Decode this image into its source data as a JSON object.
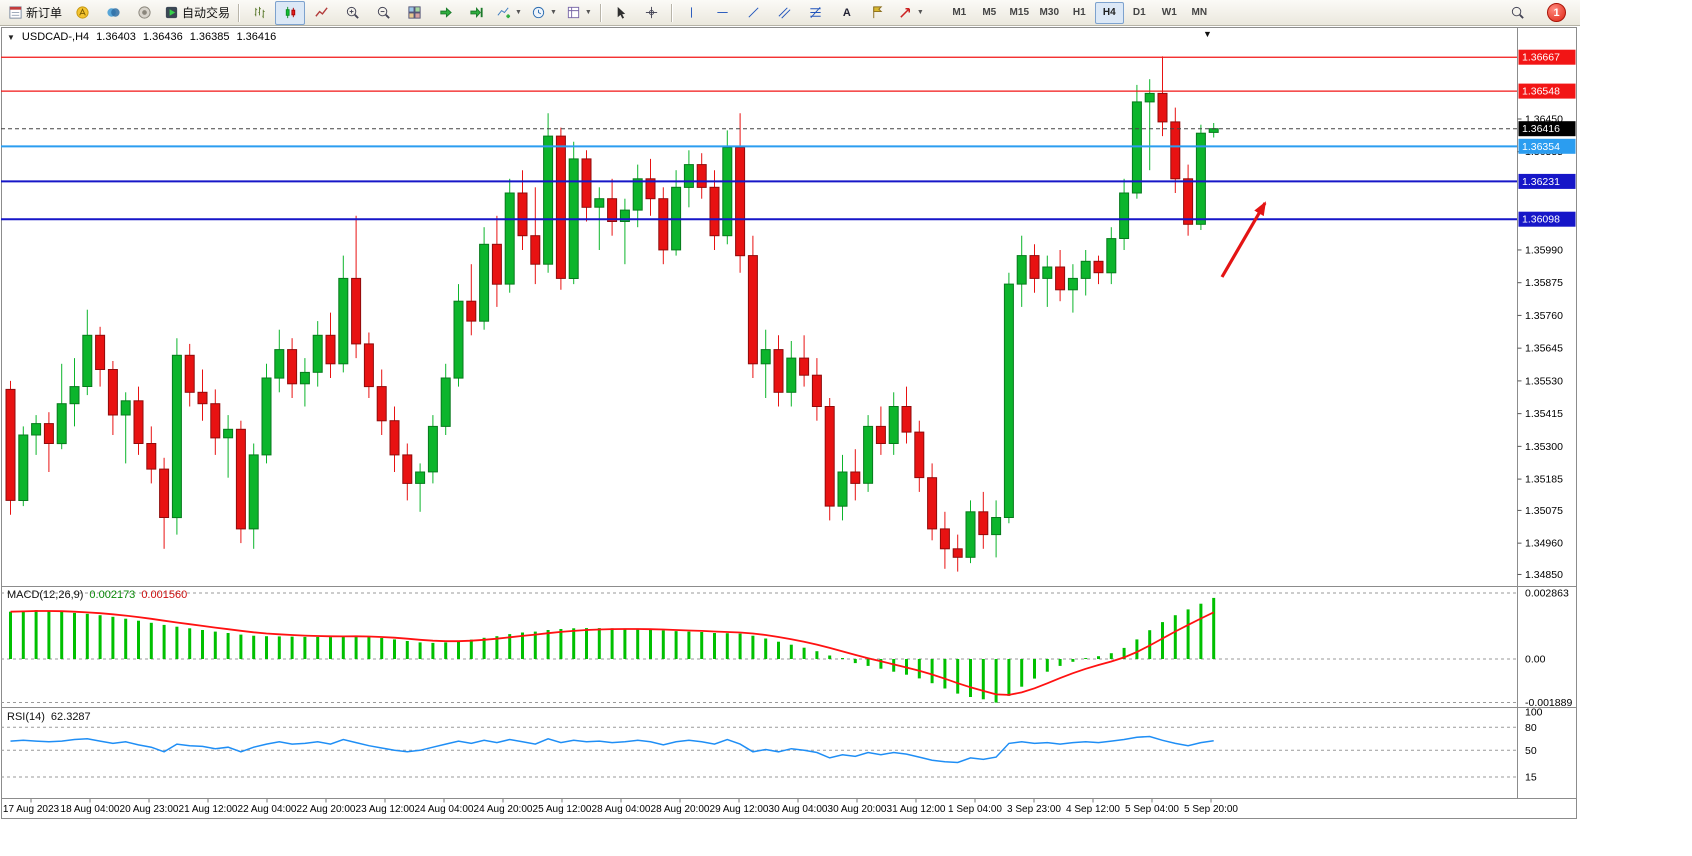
{
  "toolbar": {
    "new_order": "新订单",
    "autotrading": "自动交易",
    "timeframes": [
      "M1",
      "M5",
      "M15",
      "M30",
      "H1",
      "H4",
      "D1",
      "W1",
      "MN"
    ],
    "active_timeframe": "H4",
    "notification_count": "1"
  },
  "chart": {
    "symbol_period": "USDCAD-,H4",
    "open": "1.36403",
    "high": "1.36436",
    "low": "1.36385",
    "close": "1.36416",
    "current_price": "1.36416",
    "hlines": [
      {
        "price": 1.36667,
        "color": "#f21515",
        "width": 1.2
      },
      {
        "price": 1.36548,
        "color": "#f21515",
        "width": 1.2
      },
      {
        "price": 1.36354,
        "color": "#2b9df0",
        "width": 2
      },
      {
        "price": 1.36231,
        "color": "#1616c8",
        "width": 2
      },
      {
        "price": 1.36098,
        "color": "#1616c8",
        "width": 2
      }
    ],
    "price_ticks": [
      "1.36450",
      "1.36335",
      "1.35990",
      "1.35875",
      "1.35760",
      "1.35645",
      "1.35530",
      "1.35415",
      "1.35300",
      "1.35185",
      "1.35075",
      "1.34960",
      "1.34850"
    ]
  },
  "chart_data": {
    "type": "candlestick",
    "symbol": "USDCAD",
    "timeframe": "H4",
    "style": {
      "up": "#0cb52c",
      "up_border": "#067a1c",
      "down": "#e81212",
      "down_border": "#8f0b0b"
    },
    "candles": [
      [
        1.355,
        1.3553,
        1.3506,
        1.3511
      ],
      [
        1.3511,
        1.3537,
        1.3509,
        1.3534
      ],
      [
        1.3534,
        1.3541,
        1.3527,
        1.3538
      ],
      [
        1.3538,
        1.3542,
        1.3521,
        1.3531
      ],
      [
        1.3531,
        1.3559,
        1.3529,
        1.3545
      ],
      [
        1.3545,
        1.3561,
        1.3537,
        1.3551
      ],
      [
        1.3551,
        1.3578,
        1.3548,
        1.3569
      ],
      [
        1.3569,
        1.3572,
        1.3551,
        1.3557
      ],
      [
        1.3557,
        1.356,
        1.3534,
        1.3541
      ],
      [
        1.3541,
        1.3549,
        1.3524,
        1.3546
      ],
      [
        1.3546,
        1.3551,
        1.3527,
        1.3531
      ],
      [
        1.3531,
        1.3537,
        1.3517,
        1.3522
      ],
      [
        1.3522,
        1.3526,
        1.3494,
        1.3505
      ],
      [
        1.3505,
        1.3568,
        1.3499,
        1.3562
      ],
      [
        1.3562,
        1.3566,
        1.3544,
        1.3549
      ],
      [
        1.3549,
        1.3557,
        1.3539,
        1.3545
      ],
      [
        1.3545,
        1.355,
        1.3527,
        1.3533
      ],
      [
        1.3533,
        1.3541,
        1.3519,
        1.3536
      ],
      [
        1.3536,
        1.3539,
        1.3496,
        1.3501
      ],
      [
        1.3501,
        1.3531,
        1.3494,
        1.3527
      ],
      [
        1.3527,
        1.3559,
        1.3524,
        1.3554
      ],
      [
        1.3554,
        1.3571,
        1.3549,
        1.3564
      ],
      [
        1.3564,
        1.3568,
        1.3547,
        1.3552
      ],
      [
        1.3552,
        1.3561,
        1.3544,
        1.3556
      ],
      [
        1.3556,
        1.3574,
        1.3551,
        1.3569
      ],
      [
        1.3569,
        1.3577,
        1.3554,
        1.3559
      ],
      [
        1.3559,
        1.3597,
        1.3556,
        1.3589
      ],
      [
        1.3589,
        1.3611,
        1.3561,
        1.3566
      ],
      [
        1.3566,
        1.357,
        1.3547,
        1.3551
      ],
      [
        1.3551,
        1.3557,
        1.3534,
        1.3539
      ],
      [
        1.3539,
        1.3544,
        1.3521,
        1.3527
      ],
      [
        1.3527,
        1.3531,
        1.3511,
        1.3517
      ],
      [
        1.3517,
        1.3524,
        1.3507,
        1.3521
      ],
      [
        1.3521,
        1.3541,
        1.3517,
        1.3537
      ],
      [
        1.3537,
        1.3559,
        1.3534,
        1.3554
      ],
      [
        1.3554,
        1.3587,
        1.3551,
        1.3581
      ],
      [
        1.3581,
        1.3594,
        1.3569,
        1.3574
      ],
      [
        1.3574,
        1.3607,
        1.3571,
        1.3601
      ],
      [
        1.3601,
        1.3611,
        1.3579,
        1.3587
      ],
      [
        1.3587,
        1.3624,
        1.3584,
        1.3619
      ],
      [
        1.3619,
        1.3627,
        1.3599,
        1.3604
      ],
      [
        1.3604,
        1.3621,
        1.3587,
        1.3594
      ],
      [
        1.3594,
        1.3647,
        1.3591,
        1.3639
      ],
      [
        1.3639,
        1.3642,
        1.3585,
        1.3589
      ],
      [
        1.3589,
        1.3637,
        1.3587,
        1.3631
      ],
      [
        1.3631,
        1.3634,
        1.3609,
        1.3614
      ],
      [
        1.3614,
        1.3621,
        1.3599,
        1.3617
      ],
      [
        1.3617,
        1.3624,
        1.3604,
        1.3609
      ],
      [
        1.3609,
        1.3617,
        1.3594,
        1.3613
      ],
      [
        1.3613,
        1.3629,
        1.3607,
        1.3624
      ],
      [
        1.3624,
        1.3631,
        1.3611,
        1.3617
      ],
      [
        1.3617,
        1.3621,
        1.3594,
        1.3599
      ],
      [
        1.3599,
        1.3627,
        1.3597,
        1.3621
      ],
      [
        1.3621,
        1.3634,
        1.3614,
        1.3629
      ],
      [
        1.3629,
        1.3633,
        1.3617,
        1.3621
      ],
      [
        1.3621,
        1.3627,
        1.3599,
        1.3604
      ],
      [
        1.3604,
        1.3641,
        1.3601,
        1.3635
      ],
      [
        1.3635,
        1.3647,
        1.3591,
        1.3597
      ],
      [
        1.3597,
        1.3604,
        1.3554,
        1.3559
      ],
      [
        1.3559,
        1.3571,
        1.3547,
        1.3564
      ],
      [
        1.3564,
        1.3569,
        1.3544,
        1.3549
      ],
      [
        1.3549,
        1.3567,
        1.3544,
        1.3561
      ],
      [
        1.3561,
        1.3569,
        1.3551,
        1.3555
      ],
      [
        1.3555,
        1.3561,
        1.3539,
        1.3544
      ],
      [
        1.3544,
        1.3547,
        1.3504,
        1.3509
      ],
      [
        1.3509,
        1.3527,
        1.3504,
        1.3521
      ],
      [
        1.3521,
        1.3529,
        1.3511,
        1.3517
      ],
      [
        1.3517,
        1.3541,
        1.3514,
        1.3537
      ],
      [
        1.3537,
        1.3544,
        1.3527,
        1.3531
      ],
      [
        1.3531,
        1.3549,
        1.3527,
        1.3544
      ],
      [
        1.3544,
        1.3551,
        1.3531,
        1.3535
      ],
      [
        1.3535,
        1.3539,
        1.3514,
        1.3519
      ],
      [
        1.3519,
        1.3524,
        1.3497,
        1.3501
      ],
      [
        1.3501,
        1.3507,
        1.3487,
        1.3494
      ],
      [
        1.3494,
        1.3499,
        1.3486,
        1.3491
      ],
      [
        1.3491,
        1.3511,
        1.3489,
        1.3507
      ],
      [
        1.3507,
        1.3514,
        1.3494,
        1.3499
      ],
      [
        1.3499,
        1.3511,
        1.3491,
        1.3505
      ],
      [
        1.3505,
        1.3591,
        1.3503,
        1.3587
      ],
      [
        1.3587,
        1.3604,
        1.3579,
        1.3597
      ],
      [
        1.3597,
        1.3601,
        1.3584,
        1.3589
      ],
      [
        1.3589,
        1.3597,
        1.3579,
        1.3593
      ],
      [
        1.3593,
        1.3599,
        1.3581,
        1.3585
      ],
      [
        1.3585,
        1.3594,
        1.3577,
        1.3589
      ],
      [
        1.3589,
        1.3599,
        1.3583,
        1.3595
      ],
      [
        1.3595,
        1.3597,
        1.3587,
        1.3591
      ],
      [
        1.3591,
        1.3607,
        1.3587,
        1.3603
      ],
      [
        1.3603,
        1.3624,
        1.3599,
        1.3619
      ],
      [
        1.3619,
        1.3657,
        1.3617,
        1.3651
      ],
      [
        1.3651,
        1.3659,
        1.3627,
        1.3654
      ],
      [
        1.3654,
        1.3667,
        1.3639,
        1.3644
      ],
      [
        1.3644,
        1.3649,
        1.3619,
        1.3624
      ],
      [
        1.3624,
        1.3629,
        1.3604,
        1.3608
      ],
      [
        1.3608,
        1.3643,
        1.3606,
        1.364
      ],
      [
        1.36403,
        1.36436,
        1.36385,
        1.36416
      ]
    ],
    "macd": {
      "name": "MACD(12,26,9)",
      "value_main": "0.002173",
      "value_signal": "0.001560",
      "color_hist": "#00c000",
      "color_signal": "#ff1111",
      "scale": [
        {
          "v": 0.002863,
          "t": "0.002863"
        },
        {
          "v": 0,
          "t": "0.00"
        },
        {
          "v": -0.001889,
          "t": "-0.001889"
        }
      ],
      "hist": [
        0.00205,
        0.0021,
        0.00212,
        0.00208,
        0.00205,
        0.002,
        0.00196,
        0.0019,
        0.00183,
        0.00175,
        0.00166,
        0.00157,
        0.00148,
        0.0014,
        0.00133,
        0.00126,
        0.00119,
        0.00113,
        0.00106,
        0.00101,
        0.00099,
        0.00098,
        0.00097,
        0.00096,
        0.00096,
        0.00095,
        0.00097,
        0.00099,
        0.00096,
        0.00091,
        0.00085,
        0.00078,
        0.00072,
        0.0007,
        0.00072,
        0.00078,
        0.00084,
        0.00092,
        0.00099,
        0.00108,
        0.00115,
        0.00119,
        0.00126,
        0.0013,
        0.00133,
        0.00134,
        0.00134,
        0.00133,
        0.00131,
        0.0013,
        0.00128,
        0.00124,
        0.00121,
        0.00119,
        0.00117,
        0.00113,
        0.00112,
        0.0011,
        0.00101,
        0.00089,
        0.00075,
        0.00062,
        0.00049,
        0.00034,
        0.00015,
        -2e-05,
        -0.00018,
        -0.0003,
        -0.00042,
        -0.00055,
        -0.00068,
        -0.00084,
        -0.00105,
        -0.00128,
        -0.0015,
        -0.00165,
        -0.00175,
        -0.00189,
        -0.0016,
        -0.0012,
        -0.00085,
        -0.00055,
        -0.0003,
        -0.00012,
        2e-05,
        0.00012,
        0.00025,
        0.00048,
        0.00085,
        0.00125,
        0.0016,
        0.0019,
        0.00215,
        0.0024,
        0.00265
      ]
    },
    "rsi": {
      "name": "RSI(14)",
      "value": "62.3287",
      "color": "#1f8ef5",
      "scale": [
        {
          "v": 100,
          "t": "100"
        },
        {
          "v": 80,
          "t": "80"
        },
        {
          "v": 50,
          "t": "50"
        },
        {
          "v": 15,
          "t": "15"
        }
      ],
      "level_lines": [
        80,
        50,
        15
      ],
      "values": [
        62,
        63,
        62,
        61,
        62,
        64,
        65,
        62,
        59,
        61,
        57,
        54,
        48,
        58,
        56,
        55,
        52,
        54,
        48,
        54,
        58,
        61,
        58,
        59,
        61,
        58,
        64,
        60,
        56,
        53,
        50,
        48,
        50,
        54,
        58,
        62,
        59,
        63,
        60,
        64,
        61,
        58,
        65,
        60,
        63,
        61,
        62,
        60,
        61,
        63,
        61,
        57,
        61,
        63,
        61,
        58,
        64,
        58,
        48,
        51,
        48,
        52,
        50,
        47,
        40,
        44,
        42,
        47,
        44,
        47,
        45,
        41,
        37,
        35,
        34,
        40,
        38,
        41,
        59,
        61,
        59,
        60,
        58,
        60,
        61,
        60,
        62,
        64,
        67,
        68,
        63,
        59,
        56,
        60,
        62.33
      ]
    },
    "time_labels": [
      "17 Aug 2023",
      "18 Aug 04:00",
      "20 Aug 23:00",
      "21 Aug 12:00",
      "22 Aug 04:00",
      "22 Aug 20:00",
      "23 Aug 12:00",
      "24 Aug 04:00",
      "24 Aug 20:00",
      "25 Aug 12:00",
      "28 Aug 04:00",
      "28 Aug 20:00",
      "29 Aug 12:00",
      "30 Aug 04:00",
      "30 Aug 20:00",
      "31 Aug 12:00",
      "1 Sep 04:00",
      "3 Sep 23:00",
      "4 Sep 12:00",
      "5 Sep 04:00",
      "5 Sep 20:00"
    ],
    "annotation": {
      "type": "arrow-up",
      "color": "#e41414"
    }
  }
}
